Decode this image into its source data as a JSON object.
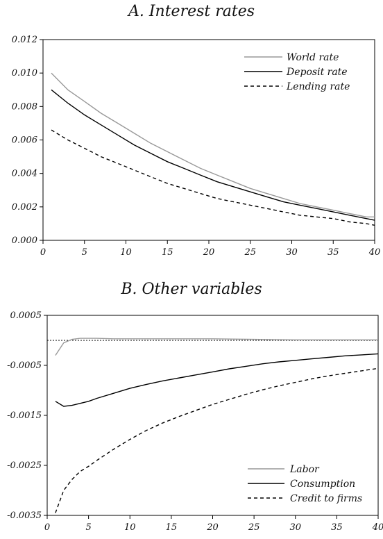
{
  "chart_data": [
    {
      "type": "line",
      "title": "A. Interest rates",
      "xlim": [
        0,
        40
      ],
      "ylim": [
        0,
        0.012
      ],
      "x_ticks": [
        0,
        5,
        10,
        15,
        20,
        25,
        30,
        35,
        40
      ],
      "y_ticks": [
        0.0,
        0.002,
        0.004,
        0.006,
        0.008,
        0.01,
        0.012
      ],
      "y_tick_labels": [
        "0.000",
        "0.002",
        "0.004",
        "0.006",
        "0.008",
        "0.010",
        "0.012"
      ],
      "legend_position": "top-right",
      "grid": false,
      "x": [
        1,
        3,
        5,
        7,
        9,
        11,
        13,
        15,
        17,
        19,
        21,
        23,
        25,
        27,
        29,
        31,
        33,
        35,
        37,
        39,
        40
      ],
      "series": [
        {
          "name": "World rate",
          "color": "#999999",
          "style": "solid",
          "values": [
            0.01,
            0.009,
            0.0083,
            0.0076,
            0.007,
            0.0064,
            0.0058,
            0.0053,
            0.0048,
            0.0043,
            0.0039,
            0.0035,
            0.0031,
            0.0028,
            0.0025,
            0.0022,
            0.002,
            0.0018,
            0.0016,
            0.0014,
            0.0014
          ]
        },
        {
          "name": "Deposit rate",
          "color": "#000000",
          "style": "solid",
          "values": [
            0.009,
            0.0082,
            0.0075,
            0.0069,
            0.0063,
            0.0057,
            0.0052,
            0.0047,
            0.0043,
            0.0039,
            0.0035,
            0.0032,
            0.0029,
            0.0026,
            0.0023,
            0.0021,
            0.0019,
            0.0017,
            0.0015,
            0.0013,
            0.0012
          ]
        },
        {
          "name": "Lending rate",
          "color": "#000000",
          "style": "dashed",
          "values": [
            0.0066,
            0.006,
            0.0055,
            0.005,
            0.0046,
            0.0042,
            0.0038,
            0.0034,
            0.0031,
            0.0028,
            0.0025,
            0.0023,
            0.0021,
            0.0019,
            0.0017,
            0.0015,
            0.0014,
            0.0013,
            0.0011,
            0.001,
            0.0009
          ]
        }
      ]
    },
    {
      "type": "line",
      "title": "B. Other variables",
      "xlim": [
        0,
        40
      ],
      "ylim": [
        -0.0035,
        0.0005
      ],
      "x_ticks": [
        0,
        5,
        10,
        15,
        20,
        25,
        30,
        35,
        40
      ],
      "y_ticks": [
        0.0005,
        -0.0005,
        -0.0015,
        -0.0025,
        -0.0035
      ],
      "y_tick_labels": [
        "0.0005",
        "-0.0005",
        "-0.0015",
        "-0.0025",
        "-0.0035"
      ],
      "reference_line": 0,
      "legend_position": "bottom-right",
      "grid": false,
      "series": [
        {
          "name": "Labor",
          "color": "#999999",
          "style": "solid",
          "x": [
            1,
            2,
            3,
            4,
            5,
            6,
            8,
            10,
            15,
            20,
            25,
            30,
            35,
            40
          ],
          "values": [
            -0.0003,
            -5e-05,
            2e-05,
            4e-05,
            4e-05,
            4e-05,
            3e-05,
            3e-05,
            3e-05,
            3e-05,
            2e-05,
            1e-05,
            1e-05,
            1e-05
          ]
        },
        {
          "name": "Consumption",
          "color": "#000000",
          "style": "solid",
          "x": [
            1,
            2,
            3,
            4,
            5,
            6,
            8,
            10,
            12,
            14,
            16,
            18,
            20,
            22,
            24,
            26,
            28,
            30,
            32,
            34,
            36,
            38,
            40
          ],
          "values": [
            -0.00122,
            -0.00132,
            -0.0013,
            -0.00126,
            -0.00122,
            -0.00116,
            -0.00106,
            -0.00096,
            -0.00088,
            -0.00081,
            -0.00075,
            -0.00069,
            -0.00063,
            -0.00057,
            -0.00052,
            -0.00047,
            -0.00043,
            -0.0004,
            -0.00037,
            -0.00034,
            -0.00031,
            -0.00029,
            -0.00027
          ]
        },
        {
          "name": "Credit to firms",
          "color": "#000000",
          "style": "dashed",
          "x": [
            1,
            2,
            3,
            4,
            5,
            6,
            8,
            10,
            12,
            14,
            16,
            18,
            20,
            22,
            24,
            26,
            28,
            30,
            32,
            34,
            36,
            38,
            40
          ],
          "values": [
            -0.00345,
            -0.003,
            -0.00278,
            -0.00262,
            -0.00252,
            -0.0024,
            -0.00218,
            -0.00198,
            -0.0018,
            -0.00165,
            -0.00152,
            -0.0014,
            -0.00128,
            -0.00118,
            -0.00108,
            -0.00099,
            -0.00091,
            -0.00084,
            -0.00077,
            -0.00071,
            -0.00066,
            -0.00061,
            -0.00056
          ]
        }
      ]
    }
  ]
}
